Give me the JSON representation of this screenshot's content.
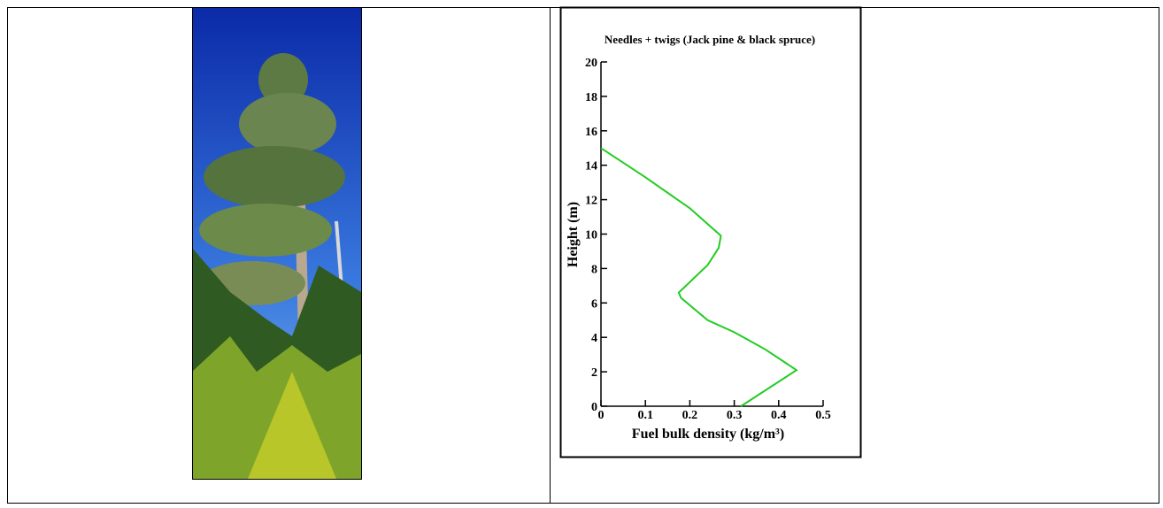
{
  "chart_data": {
    "type": "line",
    "title": "Needles + twigs (Jack pine & black spruce)",
    "xlabel": "Fuel bulk density (kg/m³)",
    "ylabel": "Height (m)",
    "x": [
      0.315,
      0.44,
      0.37,
      0.3,
      0.24,
      0.18,
      0.175,
      0.24,
      0.265,
      0.27,
      0.2,
      0.1,
      0
    ],
    "values": [
      0,
      2.1,
      3.3,
      4.3,
      5,
      6.3,
      6.6,
      8.2,
      9.2,
      9.9,
      11.5,
      13.3,
      15
    ],
    "color": "#22cc22",
    "xlim": [
      0,
      0.5
    ],
    "xticks": [
      0,
      0.1,
      0.2,
      0.3,
      0.4,
      0.5
    ],
    "ylim": [
      0,
      20
    ],
    "yticks": [
      0,
      2,
      4,
      6,
      8,
      10,
      12,
      14,
      16,
      18,
      20
    ]
  }
}
